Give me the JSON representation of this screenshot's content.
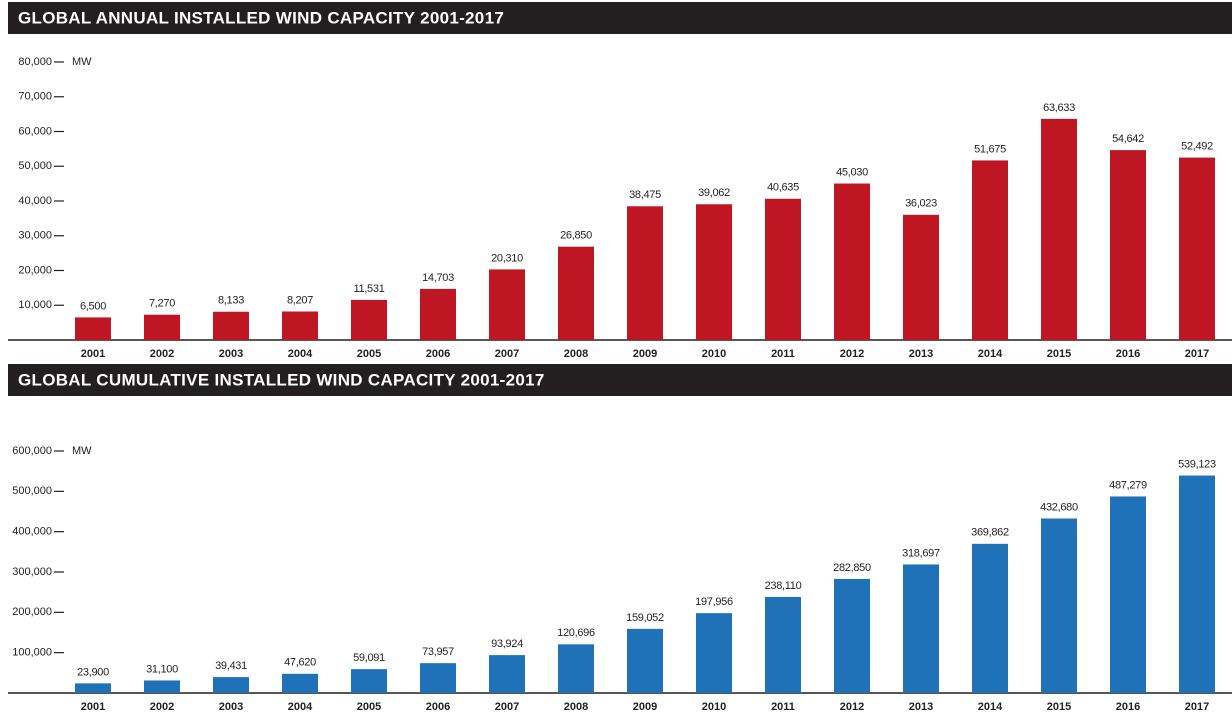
{
  "chart_data": [
    {
      "type": "bar",
      "title": "GLOBAL ANNUAL INSTALLED WIND CAPACITY 2001-2017",
      "y_axis_label": "MW",
      "categories": [
        "2001",
        "2002",
        "2003",
        "2004",
        "2005",
        "2006",
        "2007",
        "2008",
        "2009",
        "2010",
        "2011",
        "2012",
        "2013",
        "2014",
        "2015",
        "2016",
        "2017"
      ],
      "values": [
        6500,
        7270,
        8133,
        8207,
        11531,
        14703,
        20310,
        26850,
        38475,
        39062,
        40635,
        45030,
        36023,
        51675,
        63633,
        54642,
        52492
      ],
      "value_labels": [
        "6,500",
        "7,270",
        "8,133",
        "8,207",
        "11,531",
        "14,703",
        "20,310",
        "26,850",
        "38,475",
        "39,062",
        "40,635",
        "45,030",
        "36,023",
        "51,675",
        "63,633",
        "54,642",
        "52,492"
      ],
      "color": "#be1622",
      "ylim": [
        0,
        80000
      ],
      "yticks": [
        {
          "value": 10000,
          "label": "10,000"
        },
        {
          "value": 20000,
          "label": "20,000"
        },
        {
          "value": 30000,
          "label": "30,000"
        },
        {
          "value": 40000,
          "label": "40,000"
        },
        {
          "value": 50000,
          "label": "50,000"
        },
        {
          "value": 60000,
          "label": "60,000"
        },
        {
          "value": 70000,
          "label": "70,000"
        },
        {
          "value": 80000,
          "label": "80,000"
        }
      ]
    },
    {
      "type": "bar",
      "title": "GLOBAL CUMULATIVE INSTALLED WIND CAPACITY 2001-2017",
      "y_axis_label": "MW",
      "categories": [
        "2001",
        "2002",
        "2003",
        "2004",
        "2005",
        "2006",
        "2007",
        "2008",
        "2009",
        "2010",
        "2011",
        "2012",
        "2013",
        "2014",
        "2015",
        "2016",
        "2017"
      ],
      "values": [
        23900,
        31100,
        39431,
        47620,
        59091,
        73957,
        93924,
        120696,
        159052,
        197956,
        238110,
        282850,
        318697,
        369862,
        432680,
        487279,
        539123
      ],
      "value_labels": [
        "23,900",
        "31,100",
        "39,431",
        "47,620",
        "59,091",
        "73,957",
        "93,924",
        "120,696",
        "159,052",
        "197,956",
        "238,110",
        "282,850",
        "318,697",
        "369,862",
        "432,680",
        "487,279",
        "539,123"
      ],
      "color": "#1f72b8",
      "ylim": [
        0,
        600000
      ],
      "yticks": [
        {
          "value": 100000,
          "label": "100,000"
        },
        {
          "value": 200000,
          "label": "200,000"
        },
        {
          "value": 300000,
          "label": "300,000"
        },
        {
          "value": 400000,
          "label": "400,000"
        },
        {
          "value": 500000,
          "label": "500,000"
        },
        {
          "value": 600000,
          "label": "600,000"
        }
      ]
    }
  ]
}
